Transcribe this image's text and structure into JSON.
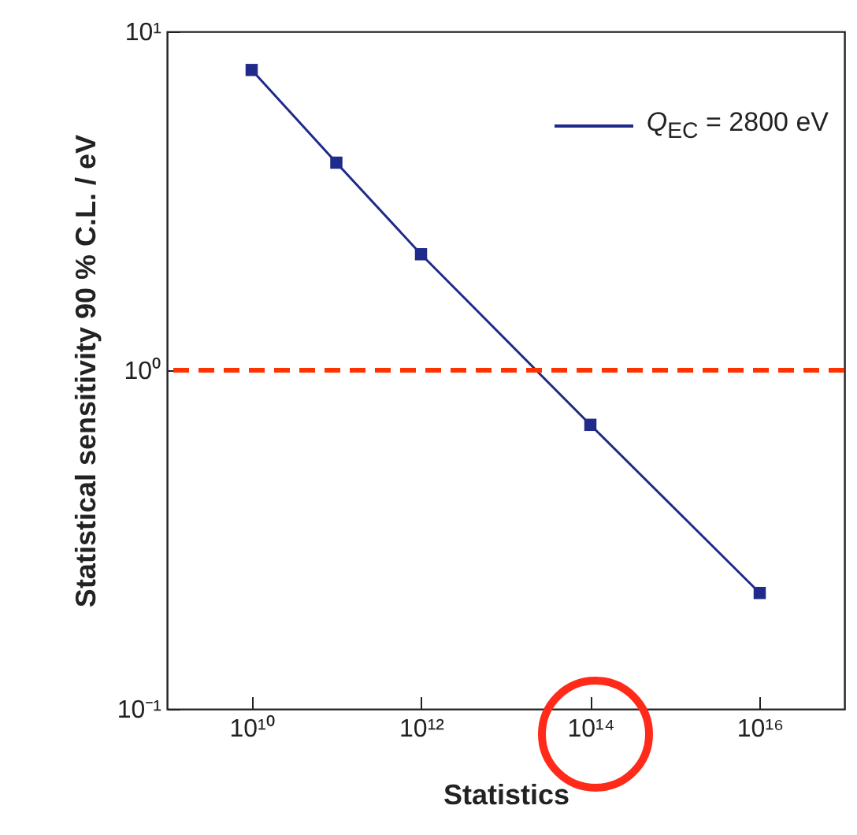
{
  "chart_data": {
    "type": "line",
    "xlabel": "Statistics",
    "ylabel": "Statistical sensitivity 90 % C.L. / eV",
    "x": [
      10000000000,
      100000000000,
      1000000000000,
      100000000000000,
      10000000000000000
    ],
    "series": [
      {
        "name": "Q$_{EC}$ = 2800 eV",
        "color": "#1f2a8a",
        "values": [
          7.7,
          4.1,
          2.2,
          0.69,
          0.22
        ]
      }
    ],
    "log": "xy",
    "xlim": [
      1000000000,
      100000000000000000
    ],
    "ylim": [
      0.1,
      10
    ],
    "xticks": [
      {
        "value": 10000000000,
        "label": "10¹⁰"
      },
      {
        "value": 1000000000000,
        "label": "10¹²"
      },
      {
        "value": 100000000000000,
        "label": "10¹⁴"
      },
      {
        "value": 10000000000000000,
        "label": "10¹⁶"
      }
    ],
    "yticks": [
      {
        "value": 0.1,
        "label": "10⁻¹"
      },
      {
        "value": 1,
        "label": "10⁰"
      },
      {
        "value": 10,
        "label": "10¹"
      }
    ],
    "ref_lines": [
      {
        "axis": "y",
        "value": 1,
        "color": "#ff3300",
        "line_style": "dashed"
      }
    ],
    "marker": "square",
    "line_style": "solid",
    "legend": "top right",
    "grid": false
  }
}
